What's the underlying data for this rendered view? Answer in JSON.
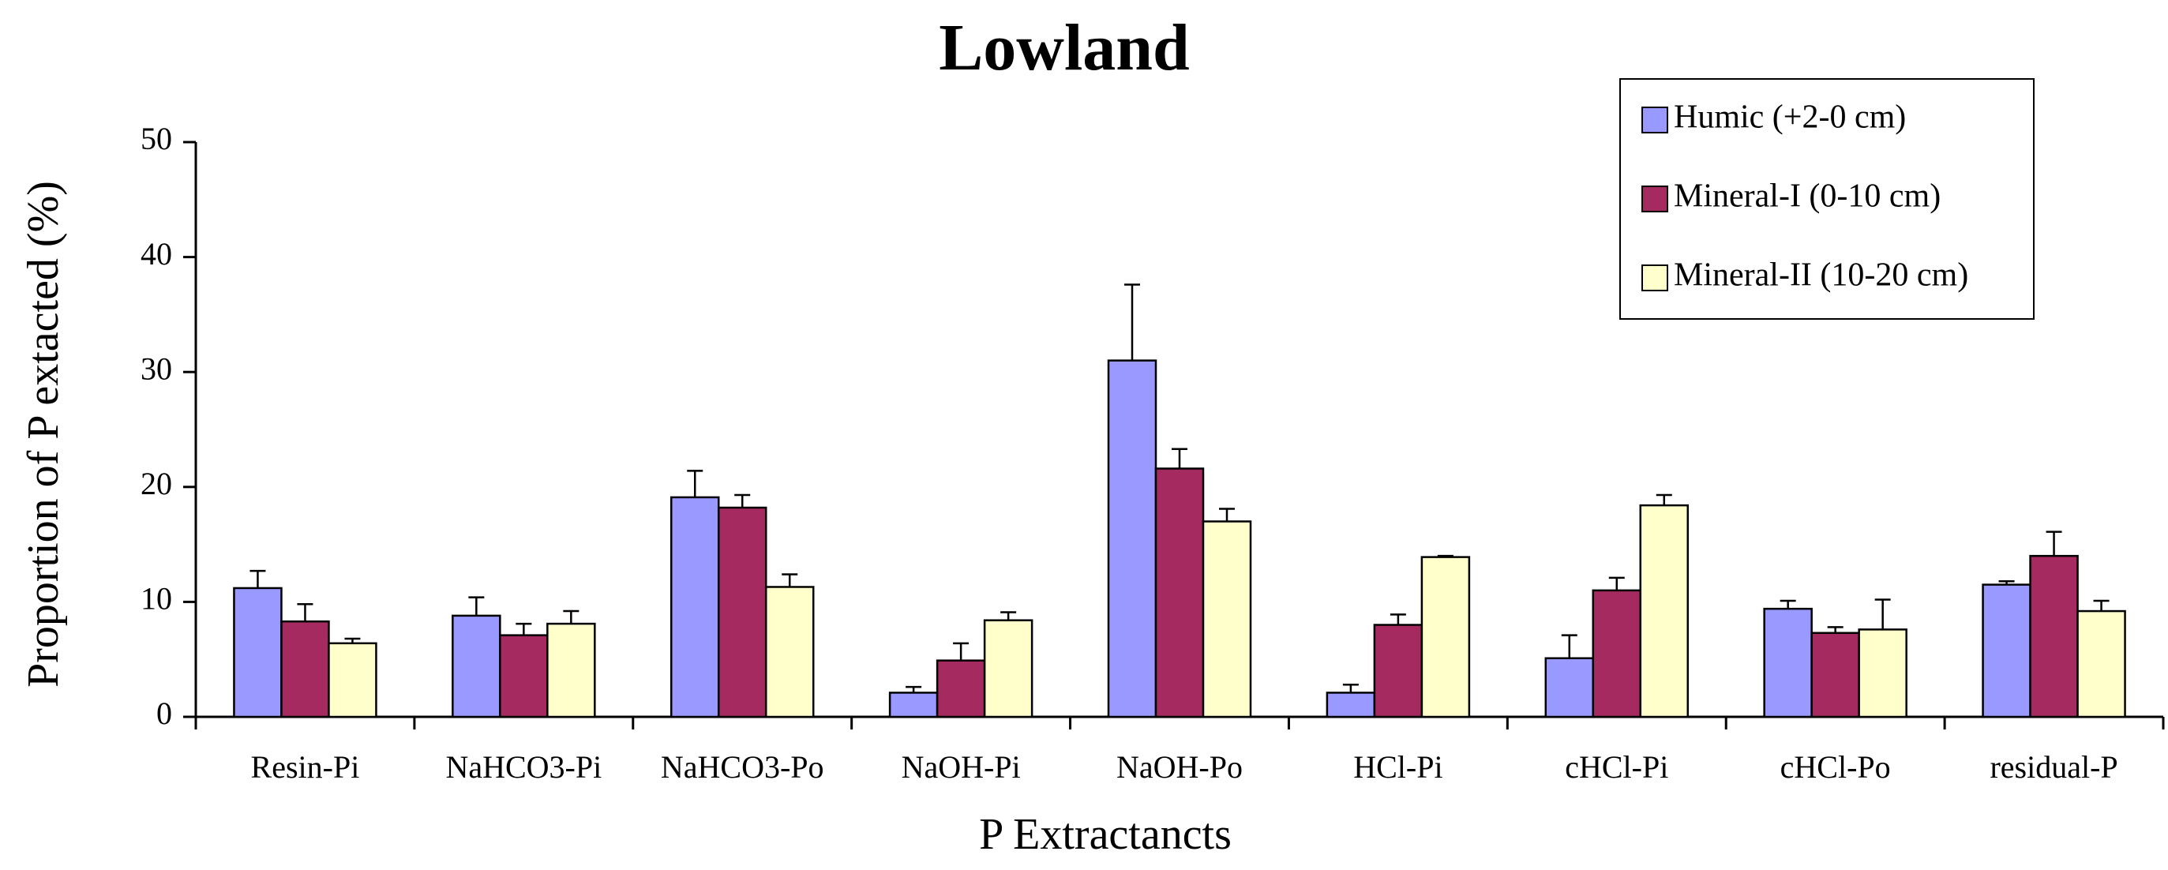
{
  "chart_data": {
    "type": "bar",
    "title": "Lowland",
    "xlabel": "P Extractancts",
    "ylabel": "Proportion of P extacted (%)",
    "ylim": [
      0,
      50
    ],
    "yticks": [
      0,
      10,
      20,
      30,
      40,
      50
    ],
    "grid": false,
    "legend_position": "top-right",
    "categories": [
      "Resin-Pi",
      "NaHCO3-Pi",
      "NaHCO3-Po",
      "NaOH-Pi",
      "NaOH-Po",
      "HCl-Pi",
      "cHCl-Pi",
      "cHCl-Po",
      "residual-P"
    ],
    "series": [
      {
        "name": "Humic  (+2-0 cm)",
        "color": "#9999ff",
        "values": [
          11.2,
          8.8,
          19.1,
          2.1,
          31.0,
          2.1,
          5.1,
          9.4,
          11.5
        ],
        "errors": [
          1.5,
          1.6,
          2.3,
          0.5,
          6.6,
          0.7,
          2.0,
          0.7,
          0.3
        ]
      },
      {
        "name": "Mineral-I (0-10 cm)",
        "color": "#a52a5f",
        "values": [
          8.3,
          7.1,
          18.2,
          4.9,
          21.6,
          8.0,
          11.0,
          7.3,
          14.0
        ],
        "errors": [
          1.5,
          1.0,
          1.1,
          1.5,
          1.7,
          0.9,
          1.1,
          0.5,
          2.1
        ]
      },
      {
        "name": "Mineral-II (10-20 cm)",
        "color": "#ffffcc",
        "values": [
          6.4,
          8.1,
          11.3,
          8.4,
          17.0,
          13.9,
          18.4,
          7.6,
          9.2
        ],
        "errors": [
          0.4,
          1.1,
          1.1,
          0.7,
          1.1,
          0.1,
          0.9,
          2.6,
          0.9
        ]
      }
    ]
  }
}
